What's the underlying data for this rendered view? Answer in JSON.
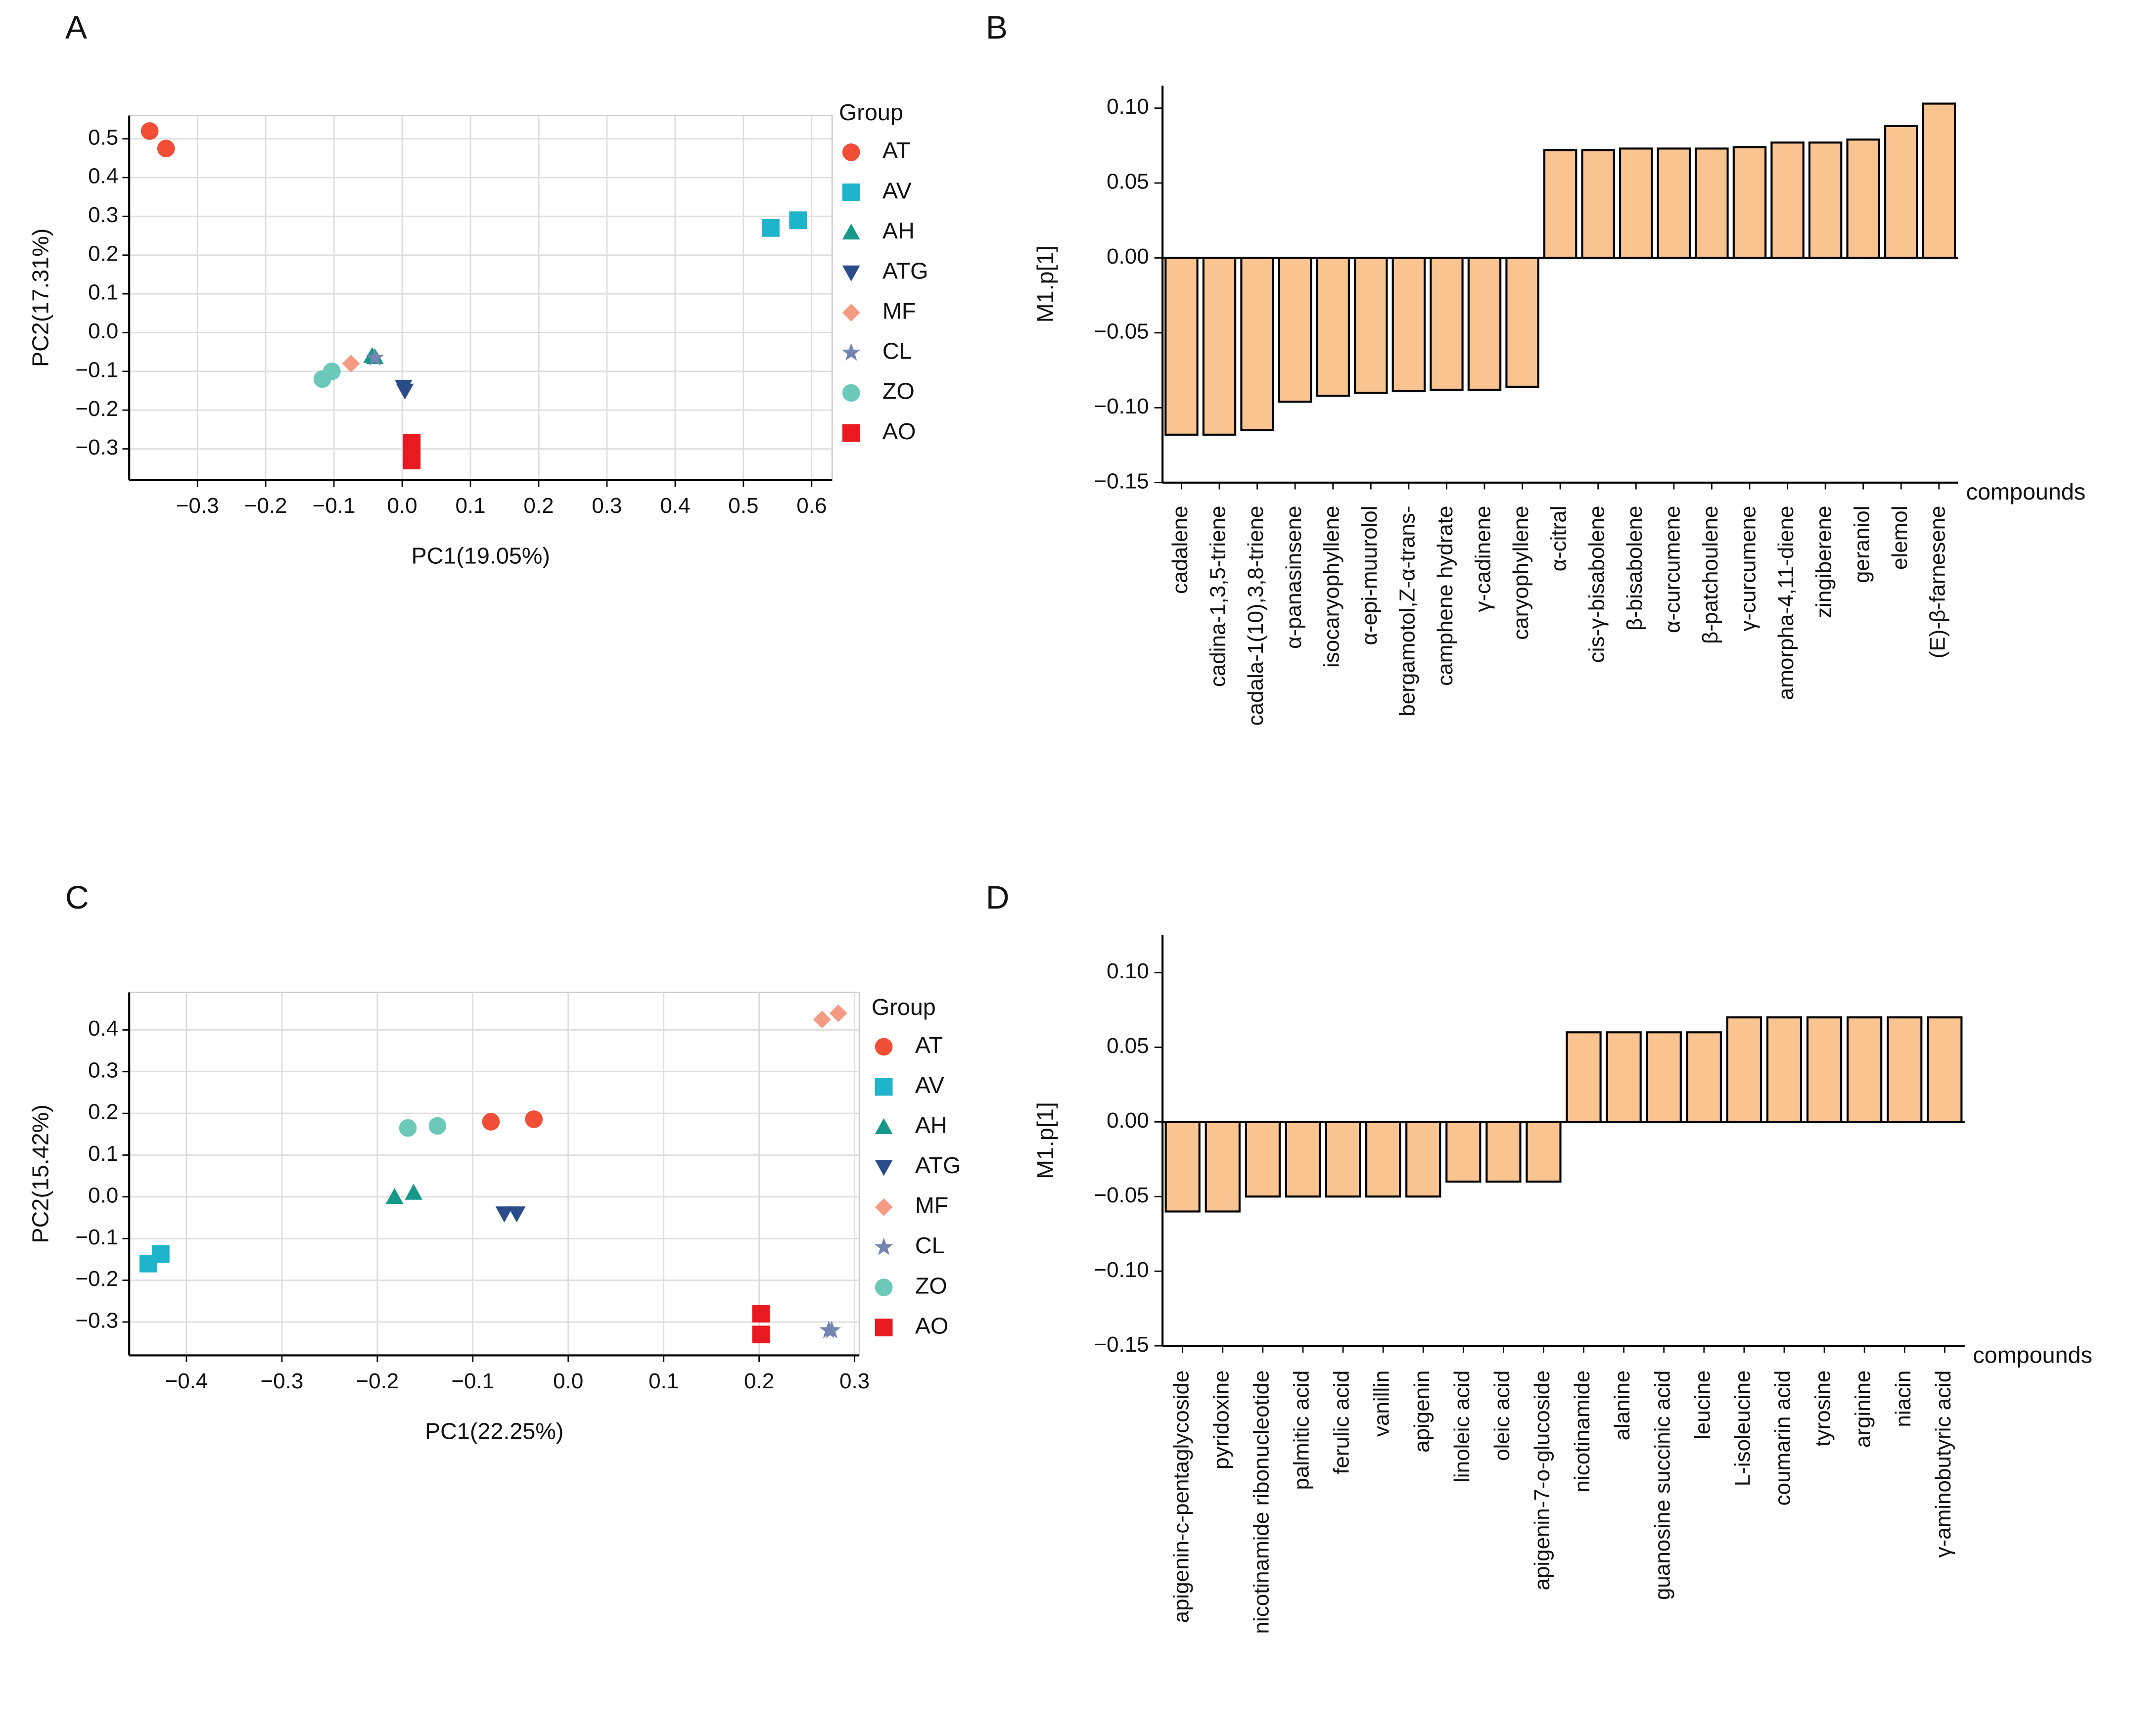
{
  "chart_data": [
    {
      "type": "scatter",
      "label": "A",
      "xlabel": "PC1(19.05%)",
      "ylabel": "PC2(17.31%)",
      "legend_title": "Group",
      "grid": true,
      "xlim": [
        -0.4,
        0.63
      ],
      "ylim": [
        -0.38,
        0.56
      ],
      "xticks": [
        {
          "value": -0.3,
          "label": "−0.3"
        },
        {
          "value": -0.2,
          "label": "−0.2"
        },
        {
          "value": -0.1,
          "label": "−0.1"
        },
        {
          "value": 0,
          "label": "0.0"
        },
        0.1,
        0.2,
        0.3,
        0.4,
        0.5,
        0.6
      ],
      "yticks": [
        {
          "value": -0.3,
          "label": "−0.3"
        },
        {
          "value": -0.2,
          "label": "−0.2"
        },
        {
          "value": -0.1,
          "label": "−0.1"
        },
        {
          "value": 0,
          "label": "0.0"
        },
        0.1,
        0.2,
        0.3,
        0.4,
        0.5
      ],
      "series": [
        {
          "name": "AT",
          "color": "#f04e37",
          "marker": "circle",
          "x": [
            -0.37,
            -0.346
          ],
          "values": [
            0.52,
            0.475
          ]
        },
        {
          "name": "AV",
          "color": "#1eb4cc",
          "marker": "square",
          "x": [
            0.54,
            0.58
          ],
          "values": [
            0.27,
            0.29
          ]
        },
        {
          "name": "AH",
          "color": "#16998a",
          "marker": "triangle",
          "x": [
            -0.044,
            -0.04
          ],
          "values": [
            -0.06,
            -0.063
          ]
        },
        {
          "name": "ATG",
          "color": "#2a4c8a",
          "marker": "triangle-down",
          "x": [
            0.002,
            0.004
          ],
          "values": [
            -0.14,
            -0.15
          ]
        },
        {
          "name": "MF",
          "color": "#f59b84",
          "marker": "diamond",
          "x": [
            -0.075
          ],
          "values": [
            -0.08
          ]
        },
        {
          "name": "CL",
          "color": "#7385b0",
          "marker": "star",
          "x": [
            -0.04
          ],
          "values": [
            -0.065
          ]
        },
        {
          "name": "ZO",
          "color": "#6cc9b9",
          "marker": "circle",
          "x": [
            -0.117,
            -0.103
          ],
          "values": [
            -0.12,
            -0.1
          ]
        },
        {
          "name": "AO",
          "color": "#e8191f",
          "marker": "square",
          "x": [
            0.014,
            0.014
          ],
          "values": [
            -0.285,
            -0.33
          ]
        }
      ]
    },
    {
      "type": "bar",
      "label": "B",
      "xlabel": "compounds",
      "ylabel": "M1.p[1]",
      "color": "#f9c490",
      "ylim": [
        -0.15,
        0.115
      ],
      "yticks": [
        {
          "value": -0.15,
          "label": "−0.15"
        },
        {
          "value": -0.1,
          "label": "−0.10"
        },
        {
          "value": -0.05,
          "label": "−0.05"
        },
        {
          "value": 0,
          "label": "0.00"
        },
        {
          "value": 0.05,
          "label": "0.05"
        },
        {
          "value": 0.1,
          "label": "0.10"
        }
      ],
      "categories": [
        "cadalene",
        "cadina-1,3,5-triene",
        "cadala-1(10),3,8-triene",
        "α-panasinsene",
        "isocaryophyllene",
        "α-epi-muurolol",
        "bergamotol,Z-α-trans-",
        "camphene hydrate",
        "γ-cadinene",
        "caryophyllene",
        "α-citral",
        "cis-γ-bisabolene",
        "β-bisabolene",
        "α-curcumene",
        "β-patchoulene",
        "γ-curcumene",
        "amorpha-4,11-diene",
        "zingiberene",
        "geraniol",
        "elemol",
        "(E)-β-farnesene"
      ],
      "values": [
        -0.118,
        -0.118,
        -0.115,
        -0.096,
        -0.092,
        -0.09,
        -0.089,
        -0.088,
        -0.088,
        -0.086,
        0.072,
        0.072,
        0.073,
        0.073,
        0.073,
        0.074,
        0.077,
        0.077,
        0.079,
        0.088,
        0.103
      ]
    },
    {
      "type": "scatter",
      "label": "C",
      "xlabel": "PC1(22.25%)",
      "ylabel": "PC2(15.42%)",
      "legend_title": "Group",
      "grid": true,
      "xlim": [
        -0.46,
        0.305
      ],
      "ylim": [
        -0.38,
        0.49
      ],
      "xticks": [
        {
          "value": -0.4,
          "label": "−0.4"
        },
        {
          "value": -0.3,
          "label": "−0.3"
        },
        {
          "value": -0.2,
          "label": "−0.2"
        },
        {
          "value": -0.1,
          "label": "−0.1"
        },
        {
          "value": 0,
          "label": "0.0"
        },
        0.1,
        0.2,
        0.3
      ],
      "yticks": [
        {
          "value": -0.3,
          "label": "−0.3"
        },
        {
          "value": -0.2,
          "label": "−0.2"
        },
        {
          "value": -0.1,
          "label": "−0.1"
        },
        {
          "value": 0,
          "label": "0.0"
        },
        0.1,
        0.2,
        0.3,
        0.4
      ],
      "series": [
        {
          "name": "AT",
          "color": "#f04e37",
          "marker": "circle",
          "x": [
            -0.081,
            -0.036
          ],
          "values": [
            0.18,
            0.186
          ]
        },
        {
          "name": "AV",
          "color": "#1eb4cc",
          "marker": "square",
          "x": [
            -0.44,
            -0.427
          ],
          "values": [
            -0.16,
            -0.137
          ]
        },
        {
          "name": "AH",
          "color": "#16998a",
          "marker": "triangle",
          "x": [
            -0.182,
            -0.162
          ],
          "values": [
            0.0,
            0.01
          ]
        },
        {
          "name": "ATG",
          "color": "#2a4c8a",
          "marker": "triangle-down",
          "x": [
            -0.067,
            -0.054
          ],
          "values": [
            -0.04,
            -0.04
          ]
        },
        {
          "name": "MF",
          "color": "#f59b84",
          "marker": "diamond",
          "x": [
            0.266,
            0.283
          ],
          "values": [
            0.425,
            0.44
          ]
        },
        {
          "name": "CL",
          "color": "#7385b0",
          "marker": "star",
          "x": [
            0.273,
            0.276
          ],
          "values": [
            -0.32,
            -0.32
          ]
        },
        {
          "name": "ZO",
          "color": "#6cc9b9",
          "marker": "circle",
          "x": [
            -0.168,
            -0.137
          ],
          "values": [
            0.165,
            0.17
          ]
        },
        {
          "name": "AO",
          "color": "#e8191f",
          "marker": "square",
          "x": [
            0.202,
            0.202
          ],
          "values": [
            -0.28,
            -0.33
          ]
        }
      ]
    },
    {
      "type": "bar",
      "label": "D",
      "xlabel": "compounds",
      "ylabel": "M1.p[1]",
      "color": "#f9c490",
      "ylim": [
        -0.15,
        0.125
      ],
      "yticks": [
        {
          "value": -0.15,
          "label": "−0.15"
        },
        {
          "value": -0.1,
          "label": "−0.10"
        },
        {
          "value": -0.05,
          "label": "−0.05"
        },
        {
          "value": 0,
          "label": "0.00"
        },
        {
          "value": 0.05,
          "label": "0.05"
        },
        {
          "value": 0.1,
          "label": "0.10"
        }
      ],
      "categories": [
        "apigenin-c-pentaglycoside",
        "pyridoxine",
        "nicotinamide ribonucleotide",
        "palmitic acid",
        "ferulic acid",
        "vanillin",
        "apigenin",
        "linoleic acid",
        "oleic acid",
        "apigenin-7-o-glucoside",
        "nicotinamide",
        "alanine",
        "guanosine succinic acid",
        "leucine",
        "L-isoleucine",
        "coumarin acid",
        "tyrosine",
        "arginine",
        "niacin",
        "γ-aminobutyric acid"
      ],
      "values": [
        -0.06,
        -0.06,
        -0.05,
        -0.05,
        -0.05,
        -0.05,
        -0.05,
        -0.04,
        -0.04,
        -0.04,
        0.06,
        0.06,
        0.06,
        0.06,
        0.07,
        0.07,
        0.07,
        0.07,
        0.07,
        0.07
      ]
    }
  ]
}
